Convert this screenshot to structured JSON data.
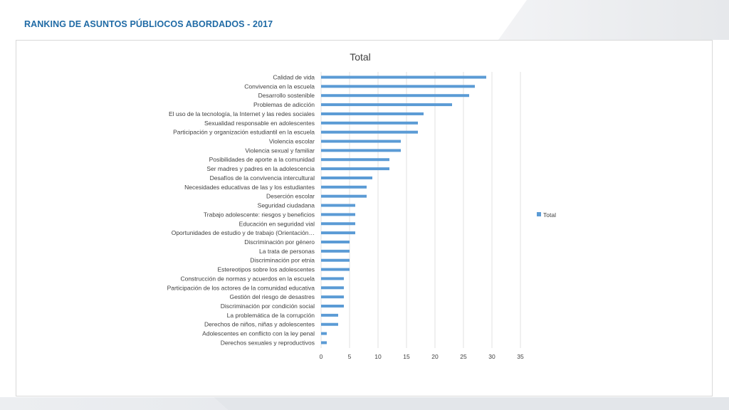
{
  "header": {
    "title": "RANKING DE ASUNTOS PÚBLIOCOS ABORDADOS - 2017"
  },
  "colors": {
    "bar": "#5b9bd5",
    "title": "#1f6aa5",
    "grid": "#d9d9d9",
    "text": "#404040"
  },
  "chart_data": {
    "type": "bar",
    "orientation": "horizontal",
    "title": "Total",
    "categories": [
      "Calidad de vida",
      "Convivencia en la escuela",
      "Desarrollo sostenible",
      "Problemas de adicción",
      "El uso de la tecnología, la Internet y las redes sociales",
      "Sexualidad responsable en adolescentes",
      "Participación y organización estudiantil en la escuela",
      "Violencia escolar",
      "Violencia sexual y familiar",
      "Posibilidades de aporte a la comunidad",
      "Ser madres y padres en la adolescencia",
      "Desafíos de la convivencia intercultural",
      "Necesidades educativas de las y los estudiantes",
      "Deserción escolar",
      "Seguridad ciudadana",
      "Trabajo adolescente: riesgos y beneficios",
      "Educación en seguridad vial",
      "Oportunidades de estudio y de trabajo (Orientación…",
      "Discriminación por género",
      "La trata de personas",
      "Discriminación por etnia",
      "Estereotipos sobre los adolescentes",
      "Construcción de normas y acuerdos en la escuela",
      "Participación de los actores de la comunidad educativa",
      "Gestión del riesgo de desastres",
      "Discriminación por condición social",
      "La problemática de la corrupción",
      "Derechos de niños, niñas y adolescentes",
      "Adolescentes en conflicto con la ley penal",
      "Derechos sexuales y reproductivos"
    ],
    "series": [
      {
        "name": "Total",
        "values": [
          29,
          27,
          26,
          23,
          18,
          17,
          17,
          14,
          14,
          12,
          12,
          9,
          8,
          8,
          6,
          6,
          6,
          6,
          5,
          5,
          5,
          5,
          4,
          4,
          4,
          4,
          3,
          3,
          1,
          1
        ]
      }
    ],
    "xlim": [
      0,
      35
    ],
    "xticks": [
      0,
      5,
      10,
      15,
      20,
      25,
      30,
      35
    ],
    "grid": true,
    "legend": "right"
  }
}
